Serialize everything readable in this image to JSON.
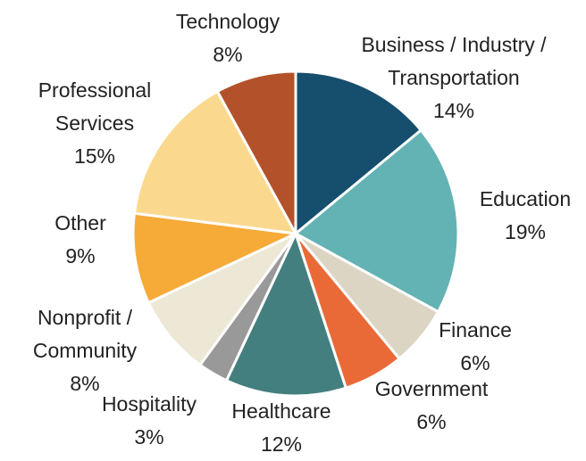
{
  "chart_data": {
    "type": "pie",
    "categories": [
      "Business / Industry / Transportation",
      "Education",
      "Finance",
      "Government",
      "Healthcare",
      "Hospitality",
      "Nonprofit / Community",
      "Other",
      "Professional Services",
      "Technology"
    ],
    "values": [
      14,
      19,
      6,
      6,
      12,
      3,
      8,
      9,
      15,
      8
    ],
    "value_labels": [
      "14%",
      "19%",
      "6%",
      "6%",
      "12%",
      "3%",
      "8%",
      "9%",
      "15%",
      "8%"
    ],
    "colors": [
      "#164e6e",
      "#64b3b4",
      "#dcd5c4",
      "#e96a37",
      "#447f7f",
      "#999999",
      "#ede7d5",
      "#f6aa38",
      "#fad98f",
      "#b3522a"
    ]
  }
}
